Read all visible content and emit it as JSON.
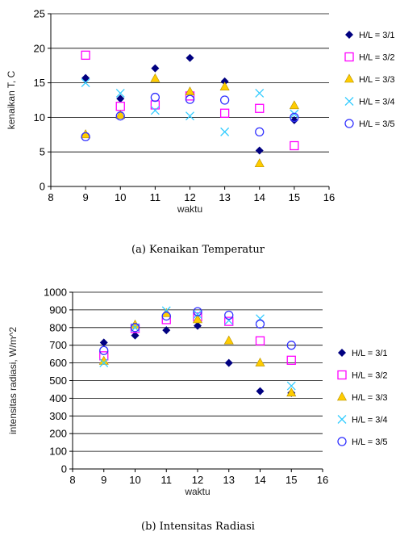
{
  "chart_data": [
    {
      "type": "scatter",
      "caption": "(a) Kenaikan Temperatur",
      "xlabel": "waktu",
      "ylabel": "kenaikan T, C",
      "xlim": [
        8,
        16
      ],
      "ylim": [
        0,
        25
      ],
      "x_ticks": [
        "8",
        "9",
        "10",
        "11",
        "12",
        "13",
        "14",
        "15",
        "16"
      ],
      "y_ticks": [
        "0",
        "5",
        "10",
        "15",
        "20",
        "25"
      ],
      "grid": "horizontal",
      "legend_position": "right",
      "series": [
        {
          "name": "H/L = 3/1",
          "marker": "diamond",
          "color": "#000080",
          "x": [
            9,
            10,
            11,
            12,
            13,
            14,
            15
          ],
          "y": [
            15.7,
            12.7,
            17.1,
            18.6,
            15.2,
            5.2,
            9.6
          ]
        },
        {
          "name": "H/L = 3/2",
          "marker": "square",
          "color": "#ff00ff",
          "x": [
            9,
            10,
            11,
            12,
            13,
            14,
            15
          ],
          "y": [
            19.0,
            11.6,
            11.8,
            13.1,
            10.6,
            11.3,
            5.9
          ]
        },
        {
          "name": "H/L = 3/3",
          "marker": "triangle",
          "color": "#ffcc00",
          "x": [
            9,
            10,
            11,
            12,
            13,
            14,
            15
          ],
          "y": [
            7.5,
            10.3,
            15.6,
            13.7,
            14.4,
            3.3,
            11.7
          ]
        },
        {
          "name": "H/L = 3/4",
          "marker": "x",
          "color": "#33ccff",
          "x": [
            9,
            10,
            11,
            12,
            13,
            14,
            15
          ],
          "y": [
            15.0,
            13.5,
            11.0,
            10.2,
            7.9,
            13.5,
            10.5
          ]
        },
        {
          "name": "H/L = 3/5",
          "marker": "circle",
          "color": "#3333ff",
          "x": [
            9,
            10,
            11,
            12,
            13,
            14,
            15
          ],
          "y": [
            7.2,
            10.2,
            12.9,
            12.6,
            12.5,
            7.9,
            10.0
          ]
        }
      ]
    },
    {
      "type": "scatter",
      "caption": "(b) Intensitas Radiasi",
      "xlabel": "waktu",
      "ylabel": "intensitas radiasi, W/m^2",
      "xlim": [
        8,
        16
      ],
      "ylim": [
        0,
        1000
      ],
      "x_ticks": [
        "8",
        "9",
        "10",
        "11",
        "12",
        "13",
        "14",
        "15",
        "16"
      ],
      "y_ticks": [
        "0",
        "100",
        "200",
        "300",
        "400",
        "500",
        "600",
        "700",
        "800",
        "900",
        "1000"
      ],
      "grid": "horizontal",
      "legend_position": "right",
      "series": [
        {
          "name": "H/L = 3/1",
          "marker": "diamond",
          "color": "#000080",
          "x": [
            9,
            10,
            11,
            12,
            13,
            14,
            15
          ],
          "y": [
            715,
            755,
            785,
            810,
            600,
            440,
            430
          ]
        },
        {
          "name": "H/L = 3/2",
          "marker": "square",
          "color": "#ff00ff",
          "x": [
            9,
            10,
            11,
            12,
            13,
            14,
            15
          ],
          "y": [
            640,
            795,
            845,
            860,
            835,
            725,
            615
          ]
        },
        {
          "name": "H/L = 3/3",
          "marker": "triangle",
          "color": "#ffcc00",
          "x": [
            9,
            10,
            11,
            12,
            13,
            14,
            15
          ],
          "y": [
            610,
            815,
            880,
            845,
            725,
            600,
            430
          ]
        },
        {
          "name": "H/L = 3/4",
          "marker": "x",
          "color": "#33ccff",
          "x": [
            9,
            10,
            11,
            12,
            13,
            14,
            15
          ],
          "y": [
            600,
            800,
            895,
            875,
            840,
            850,
            470
          ]
        },
        {
          "name": "H/L = 3/5",
          "marker": "circle",
          "color": "#3333ff",
          "x": [
            9,
            10,
            11,
            12,
            13,
            14,
            15
          ],
          "y": [
            670,
            800,
            865,
            890,
            870,
            820,
            700
          ]
        }
      ]
    }
  ]
}
